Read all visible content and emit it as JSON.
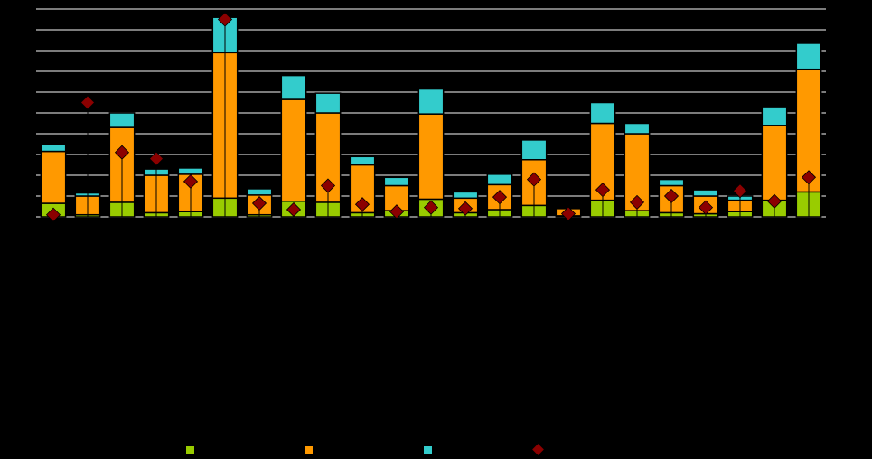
{
  "chart_data": {
    "type": "bar",
    "stacked": true,
    "title": "",
    "xlabel": "",
    "ylabel": "",
    "ylim": [
      0,
      10
    ],
    "grid": true,
    "gridlines": [
      1,
      2,
      3,
      4,
      5,
      6,
      7,
      8,
      9,
      10
    ],
    "categories": [
      "",
      "",
      "",
      "",
      "",
      "",
      "",
      "",
      "",
      "",
      "",
      "",
      "",
      "",
      "",
      "",
      "",
      "",
      "",
      "",
      "",
      "",
      ""
    ],
    "series": [
      {
        "color": "#99CC00",
        "values": [
          0.65,
          0.1,
          0.7,
          0.2,
          0.25,
          0.9,
          0.1,
          0.75,
          0.7,
          0.2,
          0.3,
          0.85,
          0.2,
          0.35,
          0.55,
          0.05,
          0.8,
          0.3,
          0.2,
          0.15,
          0.25,
          0.8,
          1.2
        ]
      },
      {
        "color": "#FF9900",
        "values": [
          2.5,
          0.9,
          3.6,
          1.8,
          1.8,
          7.0,
          0.95,
          4.9,
          4.3,
          2.3,
          1.2,
          4.1,
          0.7,
          1.2,
          2.2,
          0.35,
          3.7,
          3.7,
          1.3,
          0.85,
          0.55,
          3.6,
          5.9
        ]
      },
      {
        "color": "#33CCCC",
        "values": [
          0.35,
          0.15,
          0.7,
          0.3,
          0.3,
          1.7,
          0.3,
          1.15,
          0.95,
          0.4,
          0.4,
          1.2,
          0.3,
          0.5,
          0.95,
          0.05,
          1.0,
          0.5,
          0.3,
          0.3,
          0.2,
          0.9,
          1.25
        ]
      },
      {
        "color": "#8B0000",
        "type": "marker",
        "values": [
          0.1,
          5.5,
          3.1,
          2.8,
          1.7,
          9.5,
          0.65,
          0.35,
          1.5,
          0.6,
          0.25,
          0.45,
          0.4,
          0.95,
          1.8,
          0.15,
          1.3,
          0.7,
          1.0,
          0.45,
          1.25,
          0.75,
          1.9
        ]
      }
    ]
  }
}
